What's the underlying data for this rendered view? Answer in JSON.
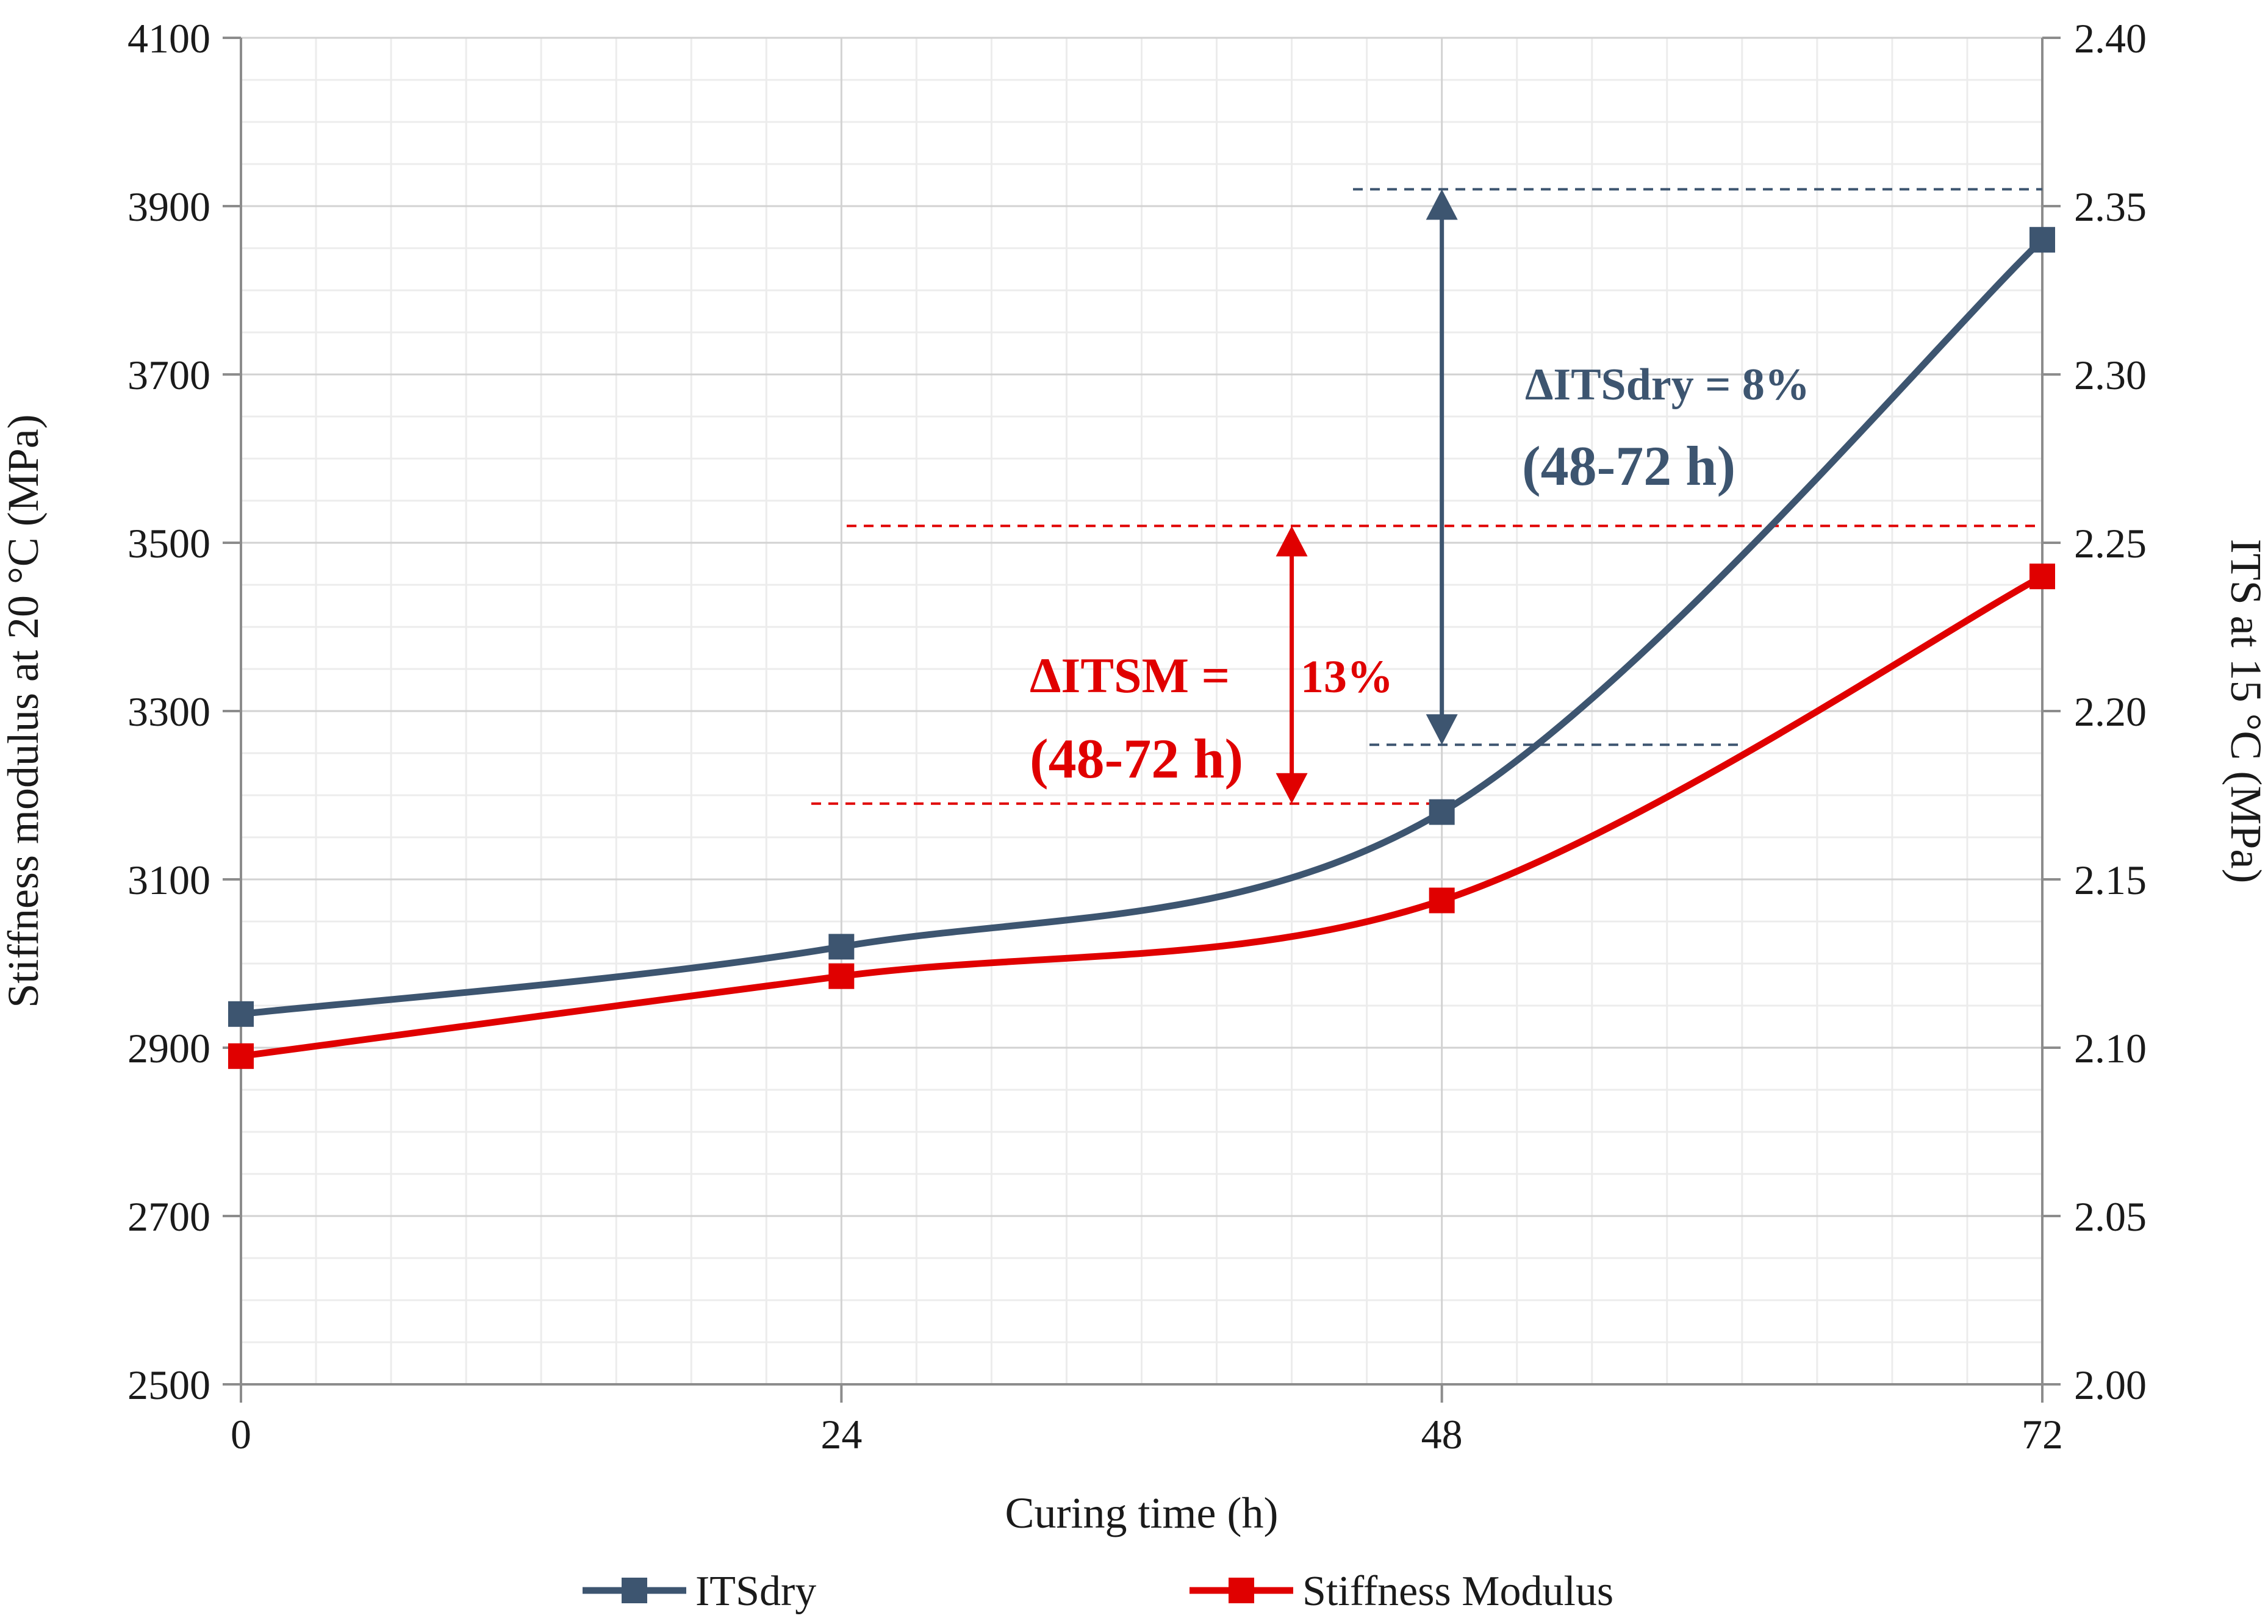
{
  "chart_data": {
    "type": "line",
    "xlabel": "Curing time (h)",
    "ylabel_left": "Stiffness modulus at 20 °C (MPa)",
    "ylabel_right": "ITS at 15 °C (MPa)",
    "x": [
      0,
      24,
      48,
      72
    ],
    "x_ticks": [
      "0",
      "24",
      "48",
      "72"
    ],
    "xlim": [
      0,
      72
    ],
    "ylim_left": [
      2500,
      4100
    ],
    "ylim_right": [
      2.0,
      2.4
    ],
    "left_ticks": [
      "2500",
      "2700",
      "2900",
      "3100",
      "3300",
      "3500",
      "3700",
      "3900",
      "4100"
    ],
    "right_ticks": [
      "2.00",
      "2.05",
      "2.10",
      "2.15",
      "2.20",
      "2.25",
      "2.30",
      "2.35",
      "2.40"
    ],
    "grid": true,
    "legend_position": "bottom",
    "series": [
      {
        "name": "ITSdry",
        "axis": "right",
        "color": "#3d5570",
        "values": [
          2.11,
          2.13,
          2.17,
          2.34
        ]
      },
      {
        "name": "Stiffness Modulus",
        "axis": "left",
        "color": "#e00000",
        "values": [
          2890,
          2985,
          3075,
          3460
        ]
      }
    ],
    "annotations": [
      {
        "id": "its",
        "line1": "ΔITSdry = 8%",
        "line2": "(48-72 h)",
        "color": "#3d5570",
        "from": 2.19,
        "to": 2.355,
        "axis": "right"
      },
      {
        "id": "itsm",
        "line1": "ΔITSM =",
        "pct": "13%",
        "line2": "(48-72 h)",
        "color": "#e00000",
        "from": 3190,
        "to": 3520,
        "axis": "left"
      }
    ]
  }
}
